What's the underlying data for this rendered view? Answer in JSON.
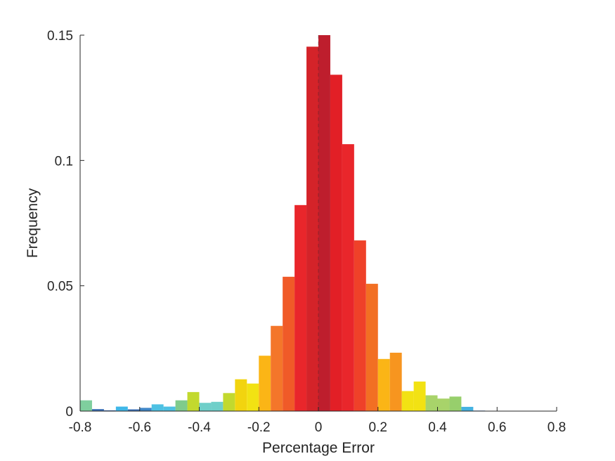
{
  "chart_data": {
    "type": "bar",
    "xlabel": "Percentage Error",
    "ylabel": "Frequency",
    "xlim": [
      -0.8,
      0.8
    ],
    "ylim": [
      0,
      0.15
    ],
    "xticks": [
      "-0.8",
      "-0.6",
      "-0.4",
      "-0.2",
      "0",
      "0.2",
      "0.4",
      "0.6",
      "0.8"
    ],
    "yticks": [
      "0",
      "0.05",
      "0.1",
      "0.15"
    ],
    "bin_width": 0.04,
    "bins": [
      {
        "x0": -0.8,
        "x1": -0.76,
        "value": 0.0043,
        "color": "#7fcf9e"
      },
      {
        "x0": -0.76,
        "x1": -0.72,
        "value": 0.0008,
        "color": "#3b6fb6"
      },
      {
        "x0": -0.72,
        "x1": -0.68,
        "value": 0.0003,
        "color": "#3b6fb6"
      },
      {
        "x0": -0.68,
        "x1": -0.64,
        "value": 0.0018,
        "color": "#3fb7e8"
      },
      {
        "x0": -0.64,
        "x1": -0.6,
        "value": 0.0007,
        "color": "#3b6fb6"
      },
      {
        "x0": -0.6,
        "x1": -0.56,
        "value": 0.0013,
        "color": "#3f86c8"
      },
      {
        "x0": -0.56,
        "x1": -0.52,
        "value": 0.0027,
        "color": "#4ec1e3"
      },
      {
        "x0": -0.52,
        "x1": -0.48,
        "value": 0.0018,
        "color": "#4ec1e3"
      },
      {
        "x0": -0.48,
        "x1": -0.44,
        "value": 0.0043,
        "color": "#7fcb8c"
      },
      {
        "x0": -0.44,
        "x1": -0.4,
        "value": 0.0076,
        "color": "#c2d92e"
      },
      {
        "x0": -0.4,
        "x1": -0.36,
        "value": 0.0033,
        "color": "#6fcfc9"
      },
      {
        "x0": -0.36,
        "x1": -0.32,
        "value": 0.0037,
        "color": "#6fcfc9"
      },
      {
        "x0": -0.32,
        "x1": -0.28,
        "value": 0.0072,
        "color": "#c2d92e"
      },
      {
        "x0": -0.28,
        "x1": -0.24,
        "value": 0.0127,
        "color": "#f2d40f"
      },
      {
        "x0": -0.24,
        "x1": -0.2,
        "value": 0.011,
        "color": "#f2e213"
      },
      {
        "x0": -0.2,
        "x1": -0.16,
        "value": 0.0221,
        "color": "#fbb516"
      },
      {
        "x0": -0.16,
        "x1": -0.12,
        "value": 0.034,
        "color": "#f4762a"
      },
      {
        "x0": -0.12,
        "x1": -0.08,
        "value": 0.0536,
        "color": "#f05a28"
      },
      {
        "x0": -0.08,
        "x1": -0.04,
        "value": 0.0822,
        "color": "#e9262b"
      },
      {
        "x0": -0.04,
        "x1": 0.0,
        "value": 0.1454,
        "color": "#d42329"
      },
      {
        "x0": 0.0,
        "x1": 0.04,
        "value": 0.15,
        "color": "#be1e2d"
      },
      {
        "x0": 0.04,
        "x1": 0.08,
        "value": 0.1342,
        "color": "#e21f26"
      },
      {
        "x0": 0.08,
        "x1": 0.12,
        "value": 0.1065,
        "color": "#e9262b"
      },
      {
        "x0": 0.12,
        "x1": 0.16,
        "value": 0.0681,
        "color": "#ef4129"
      },
      {
        "x0": 0.16,
        "x1": 0.2,
        "value": 0.0508,
        "color": "#f26f23"
      },
      {
        "x0": 0.2,
        "x1": 0.24,
        "value": 0.0208,
        "color": "#fbb516"
      },
      {
        "x0": 0.24,
        "x1": 0.28,
        "value": 0.0233,
        "color": "#f7951f"
      },
      {
        "x0": 0.28,
        "x1": 0.32,
        "value": 0.008,
        "color": "#f2e213"
      },
      {
        "x0": 0.32,
        "x1": 0.36,
        "value": 0.0118,
        "color": "#f2e213"
      },
      {
        "x0": 0.36,
        "x1": 0.4,
        "value": 0.0063,
        "color": "#a8d36a"
      },
      {
        "x0": 0.4,
        "x1": 0.44,
        "value": 0.005,
        "color": "#a8d36a"
      },
      {
        "x0": 0.44,
        "x1": 0.48,
        "value": 0.0058,
        "color": "#97cf6c"
      },
      {
        "x0": 0.48,
        "x1": 0.52,
        "value": 0.0017,
        "color": "#44b2e1"
      },
      {
        "x0": 0.52,
        "x1": 0.56,
        "value": 0.0002,
        "color": "#3b6fb6"
      },
      {
        "x0": 0.56,
        "x1": 0.6,
        "value": 0.0001,
        "color": "#3b6fb6"
      },
      {
        "x0": 0.6,
        "x1": 0.8,
        "value": 0.0001,
        "color": "#3b6fb6"
      }
    ]
  }
}
